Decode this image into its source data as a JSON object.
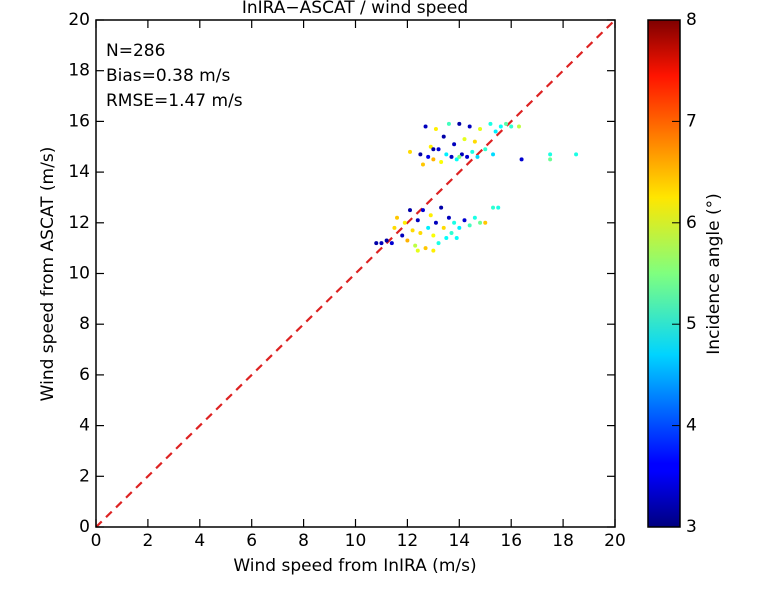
{
  "chart_data": {
    "type": "scatter",
    "title": "InIRA−ASCAT / wind speed",
    "xlabel": "Wind speed from InIRA (m/s)",
    "ylabel": "Wind speed from ASCAT (m/s)",
    "colorbar_label": "Incidence angle (°)",
    "annotations": [
      "N=286",
      "Bias=0.38 m/s",
      "RMSE=1.47 m/s"
    ],
    "xlim": [
      0,
      20
    ],
    "ylim": [
      0,
      20
    ],
    "clim": [
      3,
      8
    ],
    "xticks": [
      0,
      2,
      4,
      6,
      8,
      10,
      12,
      14,
      16,
      18,
      20
    ],
    "yticks": [
      0,
      2,
      4,
      6,
      8,
      10,
      12,
      14,
      16,
      18,
      20
    ],
    "cticks": [
      3,
      4,
      5,
      6,
      7,
      8
    ],
    "colormap": "jet",
    "identity_line_color": "#dd2222",
    "x": [
      12.1,
      12.5,
      12.6,
      12.7,
      12.8,
      12.9,
      13.0,
      13.1,
      13.2,
      13.3,
      13.4,
      13.5,
      13.6,
      13.7,
      13.8,
      13.9,
      14.0,
      14.1,
      14.2,
      14.3,
      14.4,
      14.5,
      14.6,
      14.7,
      14.8,
      15.0,
      15.2,
      15.4,
      15.6,
      15.8,
      16.0,
      16.3,
      16.4,
      17.5,
      17.5,
      18.5,
      15.3,
      14.0,
      13.0,
      10.8,
      11.0,
      11.2,
      11.4,
      11.5,
      11.6,
      11.8,
      11.9,
      12.0,
      12.1,
      12.2,
      12.3,
      12.4,
      12.5,
      12.6,
      12.7,
      12.8,
      12.9,
      13.0,
      13.1,
      13.2,
      13.3,
      13.4,
      13.5,
      13.6,
      13.7,
      13.8,
      14.0,
      14.2,
      14.4,
      14.6,
      14.8,
      15.0,
      15.3,
      15.5,
      13.0,
      12.4,
      13.9
    ],
    "values": [
      14.8,
      14.7,
      14.3,
      15.8,
      14.6,
      15.0,
      14.5,
      15.7,
      14.9,
      14.4,
      15.4,
      14.7,
      15.9,
      14.6,
      15.1,
      14.5,
      15.9,
      14.7,
      15.3,
      14.6,
      15.8,
      14.8,
      15.2,
      14.6,
      15.7,
      14.9,
      15.9,
      15.6,
      15.8,
      15.9,
      15.8,
      15.8,
      14.5,
      14.7,
      14.5,
      14.7,
      14.7,
      14.6,
      14.9,
      11.2,
      11.2,
      11.3,
      11.2,
      11.8,
      12.2,
      11.5,
      12.0,
      11.3,
      12.5,
      11.7,
      11.1,
      12.1,
      11.6,
      12.5,
      11.0,
      11.8,
      12.3,
      11.5,
      12.0,
      11.2,
      12.6,
      11.8,
      11.4,
      12.2,
      11.6,
      12.0,
      11.8,
      12.1,
      11.9,
      12.2,
      12.0,
      12.0,
      12.6,
      12.6,
      10.9,
      10.9,
      11.4
    ],
    "color_values": [
      6.3,
      3.2,
      6.4,
      3.3,
      3.5,
      6.2,
      6.5,
      6.2,
      3.4,
      6.1,
      3.2,
      4.8,
      5.2,
      3.3,
      3.3,
      4.9,
      3.2,
      3.3,
      6.0,
      3.4,
      3.3,
      5.0,
      6.3,
      4.7,
      6.0,
      5.1,
      5.0,
      4.8,
      4.9,
      5.3,
      5.1,
      5.8,
      3.4,
      5.0,
      5.4,
      5.0,
      4.7,
      5.5,
      3.2,
      3.2,
      3.3,
      3.2,
      3.4,
      6.3,
      6.4,
      3.3,
      6.2,
      6.5,
      3.2,
      6.3,
      5.8,
      3.3,
      6.3,
      3.4,
      6.4,
      4.8,
      6.2,
      6.1,
      3.3,
      5.0,
      3.2,
      6.3,
      4.9,
      3.3,
      5.1,
      5.0,
      4.8,
      3.4,
      5.2,
      5.0,
      5.4,
      6.4,
      5.1,
      5.0,
      6.2,
      6.0,
      4.9
    ]
  }
}
